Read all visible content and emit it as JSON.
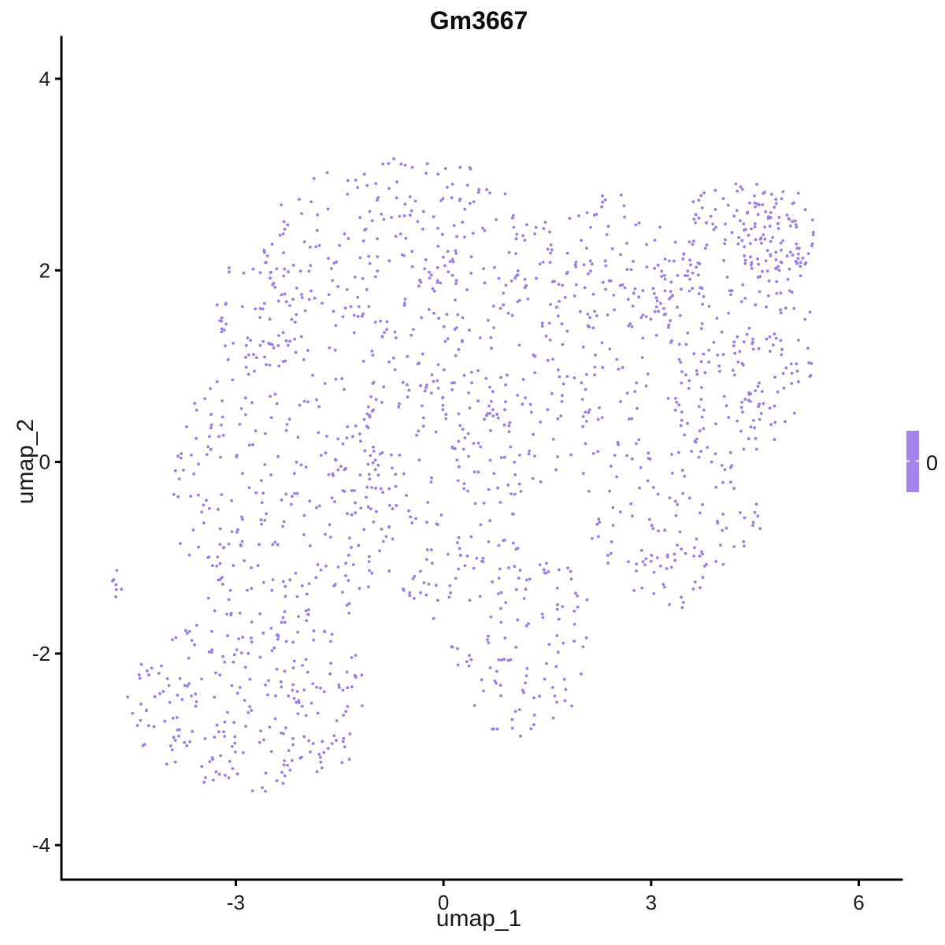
{
  "header": {
    "title": "Gm3667"
  },
  "axes": {
    "x_title": "umap_1",
    "y_title": "umap_2"
  },
  "legend": {
    "label": "0",
    "bar_color": "#a385ec",
    "tick_color": "#d9ccf6"
  },
  "chart_data": {
    "type": "scatter",
    "title": "Gm3667",
    "xlabel": "umap_1",
    "ylabel": "umap_2",
    "xlim": [
      -5.52,
      6.62
    ],
    "ylim": [
      -4.36,
      4.37
    ],
    "xticks": [
      -3,
      0,
      3,
      6
    ],
    "yticks": [
      -4,
      -2,
      0,
      2,
      4
    ],
    "grid": false,
    "legend_position": "right",
    "legend_entries": [
      "0"
    ],
    "point_color": "#9b7ee3",
    "point_radius": 1.9,
    "axis_color": "#000000",
    "tick_label_color": "#1a1a1a",
    "seed": 42,
    "clusters": [
      {
        "name": "outlier-clump",
        "cx": -4.69,
        "cy": -1.27,
        "rx": 0.1,
        "ry": 0.17,
        "n": 7
      },
      {
        "name": "bottom-left-lobe",
        "cx": -2.76,
        "cy": -2.5,
        "rx": 1.82,
        "ry": 0.95,
        "n": 235
      },
      {
        "name": "left-mid-mass",
        "cx": -2.31,
        "cy": -0.28,
        "rx": 1.6,
        "ry": 1.64,
        "n": 260
      },
      {
        "name": "center-mass",
        "cx": -0.2,
        "cy": 0.05,
        "rx": 1.36,
        "ry": 1.52,
        "n": 220
      },
      {
        "name": "top-band",
        "cx": -0.55,
        "cy": 2.23,
        "rx": 2.16,
        "ry": 0.94,
        "n": 230
      },
      {
        "name": "top-left-shoulder",
        "cx": -2.65,
        "cy": 1.57,
        "rx": 0.63,
        "ry": 0.66,
        "n": 55
      },
      {
        "name": "mid-right-bridge",
        "cx": 1.84,
        "cy": 1.04,
        "rx": 1.25,
        "ry": 1.36,
        "n": 150
      },
      {
        "name": "bottom-center-tail",
        "cx": 0.99,
        "cy": -1.84,
        "rx": 1.19,
        "ry": 1.03,
        "n": 120
      },
      {
        "name": "diagonal-band",
        "cx": 3.32,
        "cy": -0.57,
        "rx": 1.31,
        "ry": 0.74,
        "n": 90
      },
      {
        "name": "right-cluster-main",
        "cx": 4.23,
        "cy": 1.45,
        "rx": 1.19,
        "ry": 1.52,
        "n": 280
      },
      {
        "name": "right-top-knot",
        "cx": 4.8,
        "cy": 2.39,
        "rx": 0.57,
        "ry": 0.53,
        "n": 80
      },
      {
        "name": "top-connector",
        "cx": 2.47,
        "cy": 2.1,
        "rx": 0.91,
        "ry": 0.7,
        "n": 60
      },
      {
        "name": "lower-right-tail",
        "cx": 3.26,
        "cy": -1.18,
        "rx": 0.57,
        "ry": 0.37,
        "n": 25
      }
    ]
  }
}
